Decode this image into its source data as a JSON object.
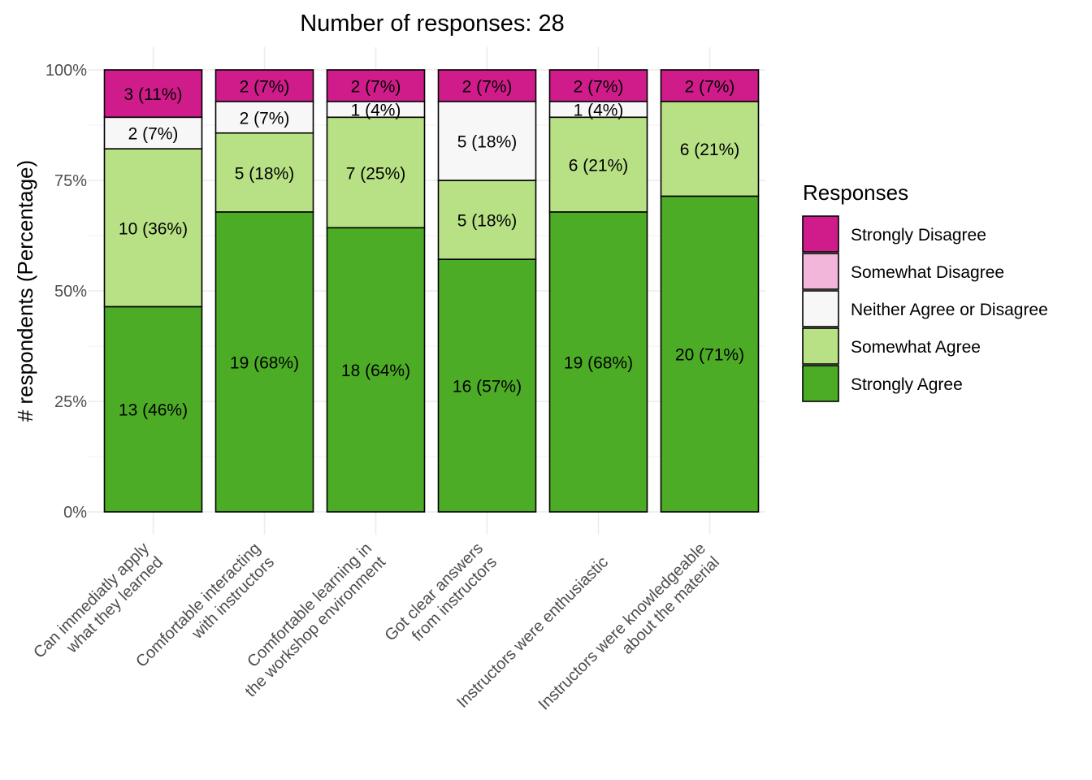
{
  "chart_data": {
    "type": "bar",
    "stacked": true,
    "title": "Number of responses: 28",
    "xlabel": "",
    "ylabel": "# respondents (Percentage)",
    "ylim": [
      0,
      100
    ],
    "yticks": [
      0,
      25,
      50,
      75,
      100
    ],
    "ytick_labels": [
      "0%",
      "25%",
      "50%",
      "75%",
      "100%"
    ],
    "grid": true,
    "categories": [
      [
        "Can immediatly apply",
        "what they learned"
      ],
      [
        "Comfortable interacting",
        "with instructors"
      ],
      [
        "Comfortable learning in",
        "the workshop environment"
      ],
      [
        "Got clear answers",
        "from instructors"
      ],
      [
        "Instructors were enthusiastic"
      ],
      [
        "Instructors were knowledgeable",
        "about the material"
      ]
    ],
    "legend": {
      "title": "Responses",
      "position": "right"
    },
    "series": [
      {
        "name": "Strongly Agree",
        "color": "#4dac26",
        "counts": [
          13,
          19,
          18,
          16,
          19,
          20
        ],
        "labels": [
          "13 (46%)",
          "19 (68%)",
          "18 (64%)",
          "16 (57%)",
          "19 (68%)",
          "20 (71%)"
        ]
      },
      {
        "name": "Somewhat Agree",
        "color": "#b8e186",
        "counts": [
          10,
          5,
          7,
          5,
          6,
          6
        ],
        "labels": [
          "10 (36%)",
          "5 (18%)",
          "7 (25%)",
          "5 (18%)",
          "6 (21%)",
          "6 (21%)"
        ]
      },
      {
        "name": "Neither Agree or Disagree",
        "color": "#f7f7f7",
        "counts": [
          2,
          2,
          1,
          5,
          1,
          0
        ],
        "labels": [
          "2 (7%)",
          "2 (7%)",
          "1 (4%)",
          "5 (18%)",
          "1 (4%)",
          ""
        ]
      },
      {
        "name": "Somewhat Disagree",
        "color": "#f1b6da",
        "counts": [
          0,
          0,
          0,
          0,
          0,
          0
        ],
        "labels": [
          "",
          "",
          "",
          "",
          "",
          ""
        ]
      },
      {
        "name": "Strongly Disagree",
        "color": "#d01c8b",
        "counts": [
          3,
          2,
          2,
          2,
          2,
          2
        ],
        "labels": [
          "3 (11%)",
          "2 (7%)",
          "2 (7%)",
          "2 (7%)",
          "2 (7%)",
          "2 (7%)"
        ]
      }
    ],
    "legend_order": [
      "Strongly Disagree",
      "Somewhat Disagree",
      "Neither Agree or Disagree",
      "Somewhat Agree",
      "Strongly Agree"
    ],
    "total": 28
  }
}
